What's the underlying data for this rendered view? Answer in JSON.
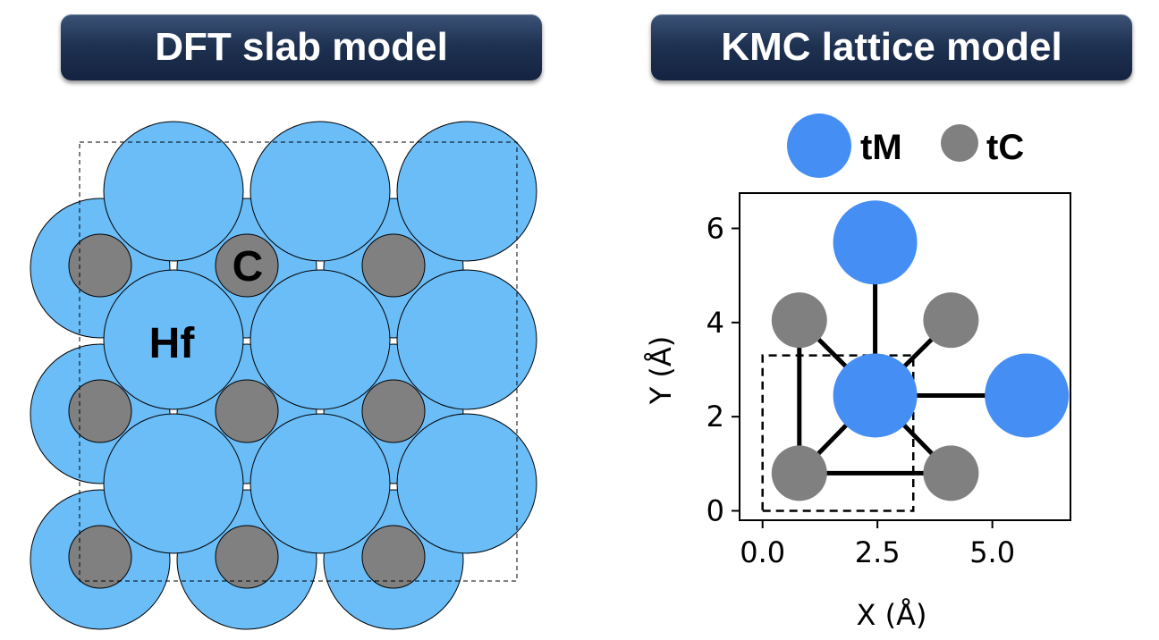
{
  "titles": {
    "left": "DFT slab model",
    "right": "KMC lattice model"
  },
  "slab": {
    "hf_color": "#6bbdf8",
    "c_color": "#808080",
    "hf_label": "Hf",
    "c_label": "C"
  },
  "kmc": {
    "legend": [
      {
        "label": "tM",
        "color": "#448ef4"
      },
      {
        "label": "tC",
        "color": "#808080"
      }
    ],
    "xlabel": "X (Å)",
    "ylabel": "Y (Å)",
    "xticks": [
      "0.0",
      "2.5",
      "5.0"
    ],
    "yticks": [
      "0",
      "2",
      "4",
      "6"
    ],
    "xlim": [
      -0.5,
      6.7
    ],
    "ylim": [
      -0.2,
      6.75
    ],
    "unit_cell": [
      [
        0,
        0
      ],
      [
        3.28,
        0
      ],
      [
        3.28,
        3.3
      ],
      [
        0,
        3.3
      ]
    ],
    "sites": [
      {
        "type": "tM",
        "x": 2.45,
        "y": 5.7
      },
      {
        "type": "tM",
        "x": 2.45,
        "y": 2.45
      },
      {
        "type": "tM",
        "x": 5.75,
        "y": 2.45
      },
      {
        "type": "tC",
        "x": 0.8,
        "y": 4.05
      },
      {
        "type": "tC",
        "x": 4.1,
        "y": 4.05
      },
      {
        "type": "tC",
        "x": 0.8,
        "y": 0.8
      },
      {
        "type": "tC",
        "x": 4.1,
        "y": 0.8
      }
    ],
    "bonds": [
      [
        1,
        0
      ],
      [
        1,
        2
      ],
      [
        1,
        3
      ],
      [
        1,
        4
      ],
      [
        1,
        5
      ],
      [
        1,
        6
      ],
      [
        5,
        3
      ],
      [
        5,
        6
      ]
    ]
  }
}
